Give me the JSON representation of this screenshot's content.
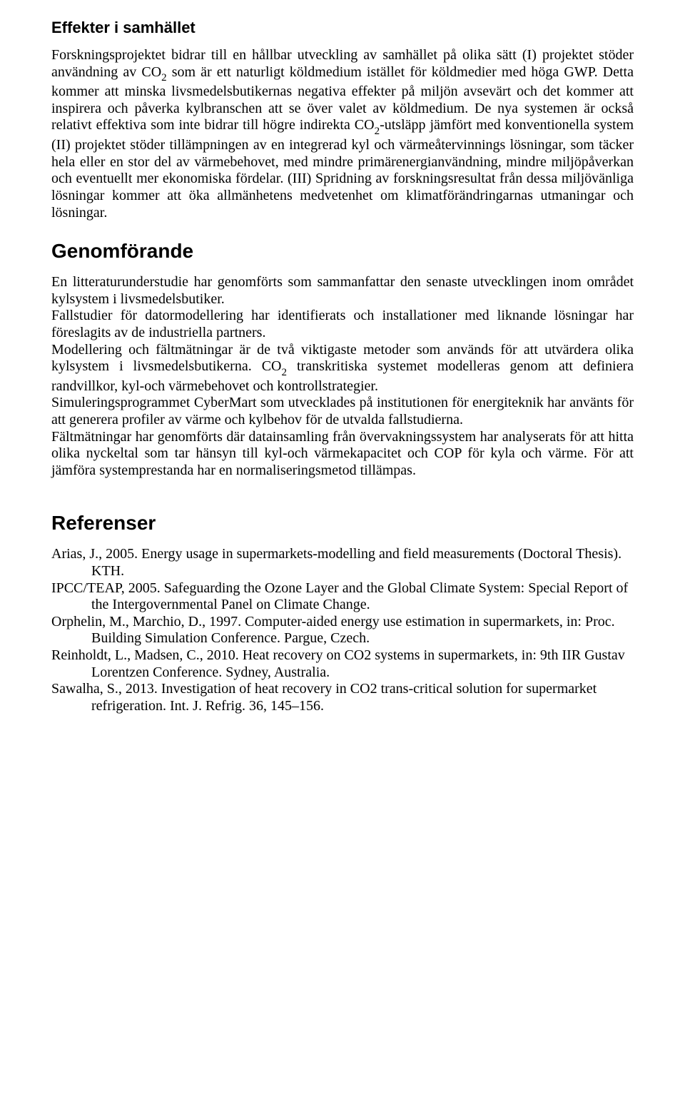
{
  "section1": {
    "heading": "Effekter i samhället",
    "paragraph": "Forskningsprojektet bidrar till en hållbar utveckling av samhället på olika sätt (I) projektet stöder användning av CO₂ som är ett naturligt köldmedium istället för köldmedier med höga GWP. Detta kommer att minska livsmedelsbutikernas negativa effekter på miljön avsevärt och det kommer att inspirera och påverka kylbranschen att se över valet av köldmedium. De nya systemen är också relativt effektiva som inte bidrar till högre indirekta CO₂-utsläpp jämfört med konventionella system (II) projektet stöder tillämpningen av en integrerad kyl och värmeåtervinnings lösningar, som täcker hela eller en stor del av värmebehovet, med mindre primärenergianvändning, mindre miljöpåverkan och eventuellt mer ekonomiska fördelar. (III) Spridning av forskningsresultat från dessa miljövänliga lösningar kommer att öka allmänhetens medvetenhet om klimatförändringarnas utmaningar och lösningar."
  },
  "section2": {
    "heading": "Genomförande",
    "p1": "En litteraturunderstudie har genomförts som sammanfattar den senaste utvecklingen inom området kylsystem i livsmedelsbutiker.",
    "p2": "Fallstudier för datormodellering har identifierats och installationer med liknande lösningar har föreslagits av de industriella partners.",
    "p3": "Modellering och fältmätningar är de två viktigaste metoder som används för att utvärdera olika kylsystem i livsmedelsbutikerna. CO₂ transkritiska systemet modelleras genom att definiera randvillkor, kyl-och värmebehovet och kontrollstrategier.",
    "p4": "Simuleringsprogrammet CyberMart som utvecklades på institutionen för energiteknik har använts för att generera profiler av värme och kylbehov för de utvalda fallstudierna.",
    "p5": "Fältmätningar har genomförts där datainsamling från övervakningssystem har analyserats för att hitta olika nyckeltal som tar hänsyn till kyl-och värmekapacitet och COP för kyla och värme. För att jämföra systemprestanda har en normaliseringsmetod tillämpas."
  },
  "section3": {
    "heading": "Referenser",
    "refs": [
      "Arias, J., 2005. Energy usage in supermarkets-modelling and field measurements (Doctoral Thesis). KTH.",
      "IPCC/TEAP, 2005. Safeguarding the Ozone Layer and the Global Climate System: Special Report of the Intergovernmental Panel on Climate Change.",
      "Orphelin, M., Marchio, D., 1997. Computer-aided energy use estimation in supermarkets, in: Proc. Building Simulation Conference. Pargue, Czech.",
      "Reinholdt, L., Madsen, C., 2010. Heat recovery on CO2 systems in supermarkets, in: 9th IIR Gustav Lorentzen Conference. Sydney, Australia.",
      "Sawalha, S., 2013. Investigation of heat recovery in CO2 trans-critical solution for supermarket refrigeration. Int. J. Refrig. 36, 145–156."
    ]
  }
}
